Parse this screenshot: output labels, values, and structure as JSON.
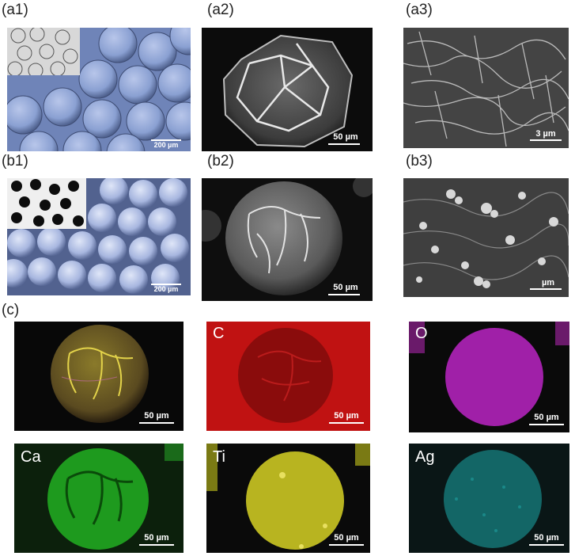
{
  "labels": {
    "a1": "(a1)",
    "a2": "(a2)",
    "a3": "(a3)",
    "b1": "(b1)",
    "b2": "(b2)",
    "b3": "(b3)",
    "c": "(c)"
  },
  "scale_bars": {
    "a1": "200 µm",
    "a2": "50 µm",
    "a3": "3 µm",
    "b1": "200 µm",
    "b2": "50 µm",
    "b3": "µm",
    "c_overlay": "50 µm",
    "c_C": "50 µm",
    "c_O": "50 µm",
    "c_Ca": "50 µm",
    "c_Ti": "50 µm",
    "c_Ag": "50 µm"
  },
  "elements": {
    "C": "C",
    "O": "O",
    "Ca": "Ca",
    "Ti": "Ti",
    "Ag": "Ag"
  },
  "colors": {
    "C": "#c81010",
    "O": "#a020a8",
    "Ca": "#1fa51f",
    "Ti": "#b8b420",
    "Ag": "#1fa0a0",
    "optical_blue": "#8fa6d4"
  }
}
